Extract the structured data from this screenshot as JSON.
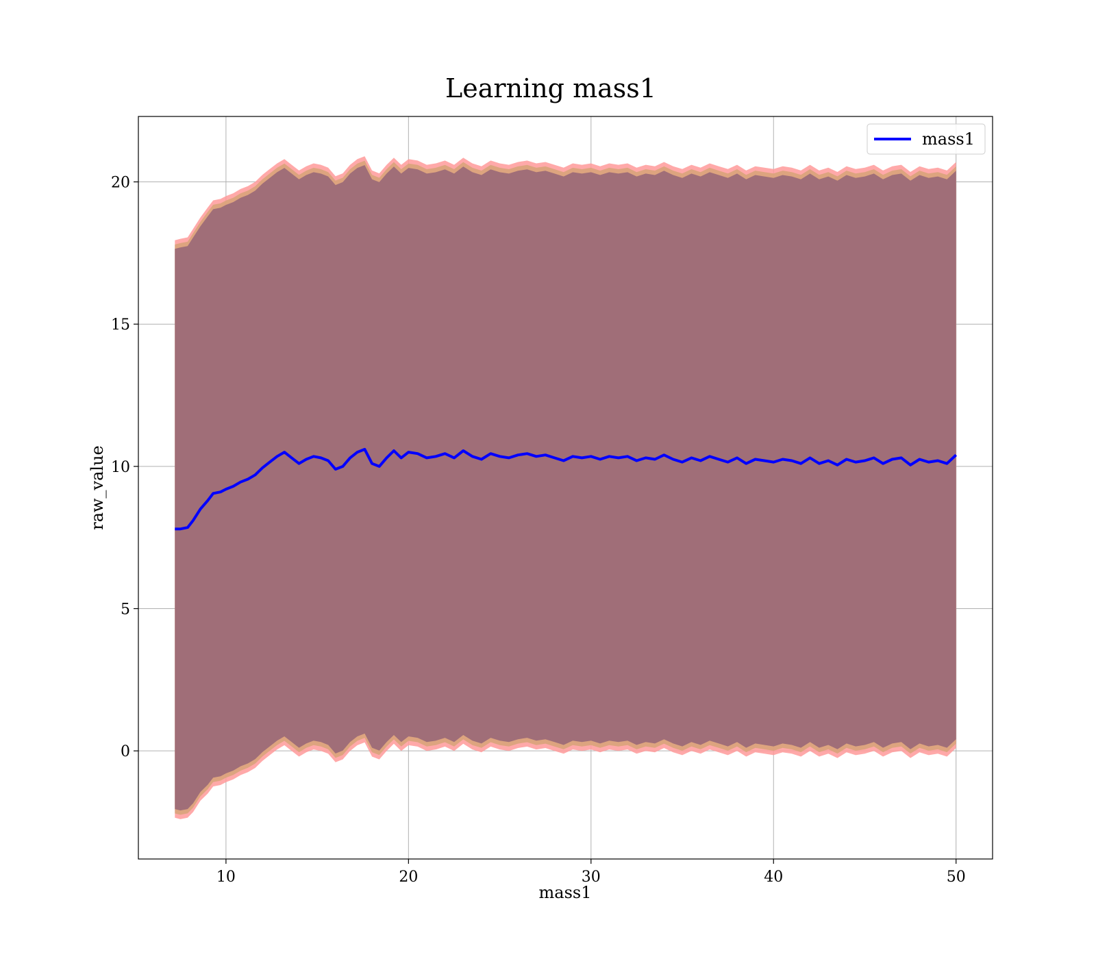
{
  "chart_data": {
    "type": "area",
    "title": "Learning mass1",
    "xlabel": "mass1",
    "ylabel": "raw_value",
    "xlim": [
      5.2,
      52
    ],
    "ylim": [
      -3.8,
      22.3
    ],
    "xticks": [
      10,
      20,
      30,
      40,
      50
    ],
    "yticks": [
      0,
      5,
      10,
      15,
      20
    ],
    "grid": true,
    "legend": {
      "position": "top-right",
      "entries": [
        "mass1"
      ]
    },
    "colors": {
      "line": "#0000ff",
      "band_outer": "#ff9a9a",
      "band_mid": "#d9a37a",
      "band_inner": "#a06e78",
      "grid": "#b0b0b0",
      "axes": "#000000"
    },
    "series": [
      {
        "name": "mass1",
        "x": [
          7.2,
          7.5,
          7.9,
          8.2,
          8.6,
          9.0,
          9.3,
          9.7,
          10.0,
          10.4,
          10.8,
          11.2,
          11.6,
          12.0,
          12.4,
          12.8,
          13.2,
          13.6,
          14.0,
          14.4,
          14.8,
          15.2,
          15.6,
          16.0,
          16.4,
          16.8,
          17.2,
          17.6,
          18.0,
          18.4,
          18.8,
          19.2,
          19.6,
          20.0,
          20.5,
          21.0,
          21.5,
          22.0,
          22.5,
          23.0,
          23.5,
          24.0,
          24.5,
          25.0,
          25.5,
          26.0,
          26.5,
          27.0,
          27.5,
          28.0,
          28.5,
          29.0,
          29.5,
          30.0,
          30.5,
          31.0,
          31.5,
          32.0,
          32.5,
          33.0,
          33.5,
          34.0,
          34.5,
          35.0,
          35.5,
          36.0,
          36.5,
          37.0,
          37.5,
          38.0,
          38.5,
          39.0,
          39.5,
          40.0,
          40.5,
          41.0,
          41.5,
          42.0,
          42.5,
          43.0,
          43.5,
          44.0,
          44.5,
          45.0,
          45.5,
          46.0,
          46.5,
          47.0,
          47.5,
          48.0,
          48.5,
          49.0,
          49.5,
          50.0
        ],
        "mean": [
          7.8,
          7.8,
          7.85,
          8.1,
          8.5,
          8.8,
          9.05,
          9.1,
          9.2,
          9.3,
          9.45,
          9.55,
          9.7,
          9.95,
          10.15,
          10.35,
          10.5,
          10.3,
          10.1,
          10.25,
          10.35,
          10.3,
          10.2,
          9.9,
          10.0,
          10.3,
          10.5,
          10.6,
          10.1,
          10.0,
          10.3,
          10.55,
          10.3,
          10.5,
          10.45,
          10.3,
          10.35,
          10.45,
          10.3,
          10.55,
          10.35,
          10.25,
          10.45,
          10.35,
          10.3,
          10.4,
          10.45,
          10.35,
          10.4,
          10.3,
          10.2,
          10.35,
          10.3,
          10.35,
          10.25,
          10.35,
          10.3,
          10.35,
          10.2,
          10.3,
          10.25,
          10.4,
          10.25,
          10.15,
          10.3,
          10.2,
          10.35,
          10.25,
          10.15,
          10.3,
          10.1,
          10.25,
          10.2,
          10.15,
          10.25,
          10.2,
          10.1,
          10.3,
          10.1,
          10.2,
          10.05,
          10.25,
          10.15,
          10.2,
          10.3,
          10.1,
          10.25,
          10.3,
          10.05,
          10.25,
          10.15,
          10.2,
          10.1,
          10.4
        ],
        "band_half_width": [
          10.15,
          10.2,
          10.2,
          10.25,
          10.25,
          10.3,
          10.3,
          10.3,
          10.3,
          10.3,
          10.3,
          10.3,
          10.3,
          10.3,
          10.3,
          10.3,
          10.3,
          10.3,
          10.3,
          10.3,
          10.3,
          10.3,
          10.3,
          10.3,
          10.3,
          10.3,
          10.3,
          10.3,
          10.3,
          10.3,
          10.3,
          10.3,
          10.3,
          10.3,
          10.3,
          10.3,
          10.3,
          10.3,
          10.3,
          10.3,
          10.3,
          10.3,
          10.3,
          10.3,
          10.3,
          10.3,
          10.3,
          10.3,
          10.3,
          10.3,
          10.3,
          10.3,
          10.3,
          10.3,
          10.3,
          10.3,
          10.3,
          10.3,
          10.3,
          10.3,
          10.3,
          10.3,
          10.3,
          10.3,
          10.3,
          10.3,
          10.3,
          10.3,
          10.3,
          10.3,
          10.3,
          10.3,
          10.3,
          10.3,
          10.3,
          10.3,
          10.3,
          10.3,
          10.3,
          10.3,
          10.3,
          10.3,
          10.3,
          10.3,
          10.3,
          10.3,
          10.3,
          10.3,
          10.3,
          10.3,
          10.3,
          10.3,
          10.3,
          10.3
        ]
      }
    ]
  }
}
